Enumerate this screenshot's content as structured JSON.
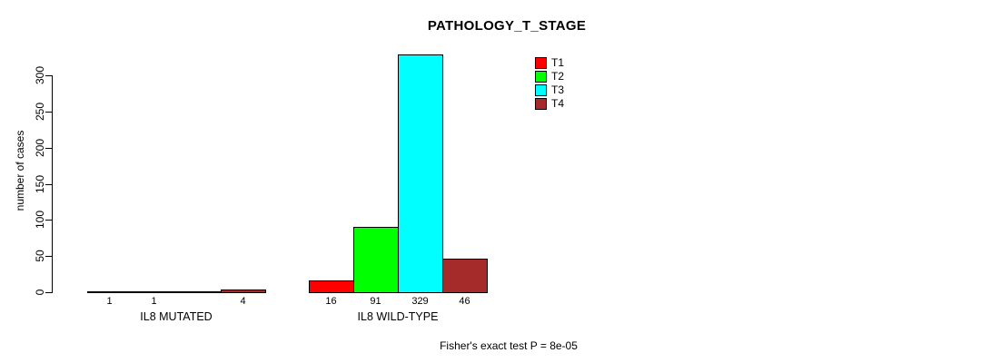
{
  "chart_data": {
    "type": "bar",
    "title": "PATHOLOGY_T_STAGE",
    "ylabel": "number of cases",
    "xlabel": "",
    "ylim": [
      0,
      300
    ],
    "yticks": [
      0,
      50,
      100,
      150,
      200,
      250,
      300
    ],
    "grid": false,
    "legend_position": "top-right",
    "groups": [
      "IL8 MUTATED",
      "IL8 WILD-TYPE"
    ],
    "series": [
      {
        "name": "T1",
        "color": "#FF0000",
        "values": [
          1,
          16
        ]
      },
      {
        "name": "T2",
        "color": "#00FF00",
        "values": [
          1,
          91
        ]
      },
      {
        "name": "T3",
        "color": "#00FFFF",
        "values": [
          0,
          329
        ]
      },
      {
        "name": "T4",
        "color": "#A52A2A",
        "values": [
          4,
          46
        ]
      }
    ],
    "bar_labels": [
      [
        "1",
        "1",
        "",
        "4"
      ],
      [
        "16",
        "91",
        "329",
        "46"
      ]
    ],
    "annotation": "Fisher's exact test P = 8e-05"
  }
}
